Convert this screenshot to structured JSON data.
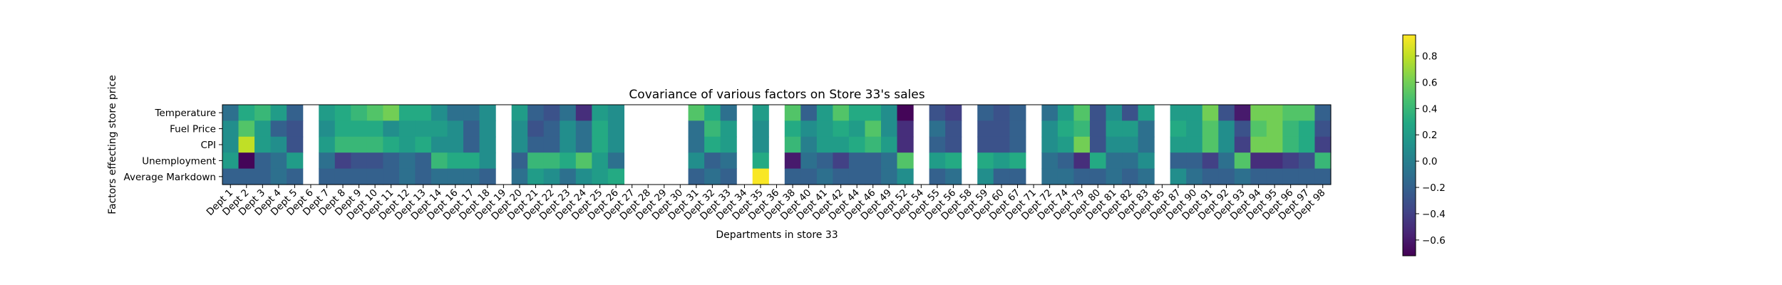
{
  "chart_data": {
    "type": "heatmap",
    "title": "Covariance of various factors on Store 33's sales",
    "xlabel": "Departments in store 33",
    "ylabel": "Factors effecting store price",
    "rows": [
      "Temperature",
      "Fuel Price",
      "CPI",
      "Unemployment",
      "Average Markdown"
    ],
    "columns": [
      "Dept 1",
      "Dept 2",
      "Dept 3",
      "Dept 4",
      "Dept 5",
      "Dept 6",
      "Dept 7",
      "Dept 8",
      "Dept 9",
      "Dept 10",
      "Dept 11",
      "Dept 12",
      "Dept 13",
      "Dept 14",
      "Dept 16",
      "Dept 17",
      "Dept 18",
      "Dept 19",
      "Dept 20",
      "Dept 21",
      "Dept 22",
      "Dept 23",
      "Dept 24",
      "Dept 25",
      "Dept 26",
      "Dept 27",
      "Dept 28",
      "Dept 29",
      "Dept 30",
      "Dept 31",
      "Dept 32",
      "Dept 33",
      "Dept 34",
      "Dept 35",
      "Dept 36",
      "Dept 38",
      "Dept 40",
      "Dept 41",
      "Dept 42",
      "Dept 44",
      "Dept 46",
      "Dept 49",
      "Dept 52",
      "Dept 54",
      "Dept 55",
      "Dept 56",
      "Dept 58",
      "Dept 59",
      "Dept 60",
      "Dept 67",
      "Dept 71",
      "Dept 72",
      "Dept 74",
      "Dept 79",
      "Dept 80",
      "Dept 81",
      "Dept 82",
      "Dept 83",
      "Dept 85",
      "Dept 87",
      "Dept 90",
      "Dept 91",
      "Dept 92",
      "Dept 93",
      "Dept 94",
      "Dept 95",
      "Dept 96",
      "Dept 97",
      "Dept 98"
    ],
    "values": [
      [
        -0.1,
        0.3,
        0.4,
        0.2,
        -0.2,
        null,
        0.2,
        0.3,
        0.4,
        0.5,
        0.6,
        0.3,
        0.3,
        0.1,
        -0.1,
        -0.1,
        0.1,
        null,
        0.2,
        -0.2,
        -0.3,
        -0.1,
        -0.5,
        0.2,
        0.1,
        null,
        null,
        null,
        null,
        0.5,
        0.3,
        -0.1,
        null,
        0.2,
        null,
        0.5,
        -0.2,
        0.2,
        0.5,
        0.3,
        0.3,
        0.1,
        -0.7,
        null,
        -0.3,
        -0.4,
        null,
        -0.2,
        -0.3,
        -0.2,
        null,
        -0.1,
        0.2,
        0.5,
        -0.3,
        0.1,
        -0.3,
        0.2,
        null,
        0.2,
        0.2,
        0.6,
        -0.3,
        -0.6,
        0.6,
        0.6,
        0.5,
        0.5,
        -0.2
      ],
      [
        0.1,
        0.5,
        0.2,
        -0.2,
        -0.3,
        null,
        0.1,
        0.3,
        0.3,
        0.3,
        0.1,
        0.2,
        0.2,
        0.2,
        0.1,
        -0.2,
        0.1,
        null,
        0.1,
        -0.3,
        -0.2,
        0.1,
        -0.1,
        0.3,
        0.1,
        null,
        null,
        null,
        null,
        -0.1,
        0.4,
        0.2,
        null,
        0.1,
        null,
        0.3,
        0.1,
        0.2,
        0.3,
        0.2,
        0.5,
        0.1,
        -0.5,
        null,
        -0.1,
        -0.3,
        null,
        -0.3,
        -0.3,
        -0.2,
        null,
        0.1,
        0.3,
        0.4,
        -0.3,
        0.2,
        0.2,
        -0.1,
        null,
        0.3,
        0.2,
        0.5,
        0.1,
        -0.3,
        0.5,
        0.6,
        0.4,
        0.3,
        -0.3
      ],
      [
        0.1,
        0.8,
        0.2,
        0.1,
        -0.3,
        null,
        0.2,
        0.4,
        0.4,
        0.4,
        0.3,
        0.2,
        0.3,
        0.1,
        0.1,
        -0.2,
        0.1,
        null,
        0.1,
        -0.2,
        -0.2,
        0.1,
        -0.1,
        0.3,
        0.1,
        null,
        null,
        null,
        null,
        -0.1,
        0.3,
        0.2,
        null,
        0.1,
        null,
        0.4,
        0.0,
        0.2,
        0.2,
        0.3,
        0.4,
        0.2,
        -0.5,
        null,
        -0.2,
        -0.3,
        null,
        -0.3,
        -0.3,
        -0.2,
        null,
        0.1,
        0.2,
        0.6,
        -0.3,
        0.1,
        0.1,
        -0.1,
        null,
        0.2,
        0.2,
        0.5,
        0.1,
        -0.4,
        0.6,
        0.6,
        0.4,
        0.3,
        -0.4
      ],
      [
        0.2,
        -0.7,
        -0.2,
        -0.1,
        0.2,
        null,
        -0.1,
        -0.4,
        -0.3,
        -0.3,
        -0.2,
        -0.1,
        -0.2,
        0.4,
        0.3,
        0.3,
        0.1,
        null,
        -0.2,
        0.4,
        0.4,
        0.3,
        0.5,
        0.2,
        -0.1,
        null,
        null,
        null,
        null,
        0.1,
        -0.2,
        -0.1,
        null,
        0.3,
        null,
        -0.6,
        -0.1,
        -0.2,
        -0.4,
        -0.2,
        -0.2,
        -0.1,
        0.5,
        null,
        0.2,
        0.3,
        null,
        0.3,
        0.2,
        0.3,
        null,
        -0.1,
        -0.2,
        -0.5,
        0.3,
        -0.1,
        -0.1,
        0.1,
        null,
        -0.2,
        -0.2,
        -0.4,
        -0.1,
        0.5,
        -0.5,
        -0.5,
        -0.4,
        -0.3,
        0.4
      ],
      [
        -0.2,
        -0.2,
        -0.2,
        -0.1,
        -0.2,
        null,
        -0.2,
        -0.2,
        -0.2,
        -0.2,
        -0.2,
        -0.1,
        -0.2,
        -0.1,
        -0.1,
        -0.1,
        -0.2,
        null,
        -0.1,
        0.2,
        0.1,
        -0.1,
        0.1,
        0.2,
        0.3,
        null,
        null,
        null,
        null,
        -0.2,
        -0.1,
        -0.2,
        null,
        0.95,
        null,
        -0.2,
        -0.2,
        -0.1,
        -0.2,
        -0.2,
        -0.2,
        -0.1,
        0.1,
        null,
        -0.2,
        -0.1,
        null,
        0.1,
        -0.2,
        -0.2,
        null,
        -0.1,
        -0.1,
        -0.2,
        -0.2,
        -0.1,
        -0.2,
        -0.1,
        null,
        0.1,
        -0.1,
        -0.2,
        -0.2,
        -0.1,
        -0.2,
        -0.2,
        -0.2,
        -0.2,
        -0.2
      ]
    ],
    "colormap": "viridis",
    "vmin": -0.72,
    "vmax": 0.96,
    "colorbar_ticks": [
      0.8,
      0.6,
      0.4,
      0.2,
      0.0,
      -0.2,
      -0.4,
      -0.6
    ],
    "colorbar_tick_labels": [
      "0.8",
      "0.6",
      "0.4",
      "0.2",
      "0.0",
      "−0.2",
      "−0.4",
      "−0.6"
    ]
  }
}
